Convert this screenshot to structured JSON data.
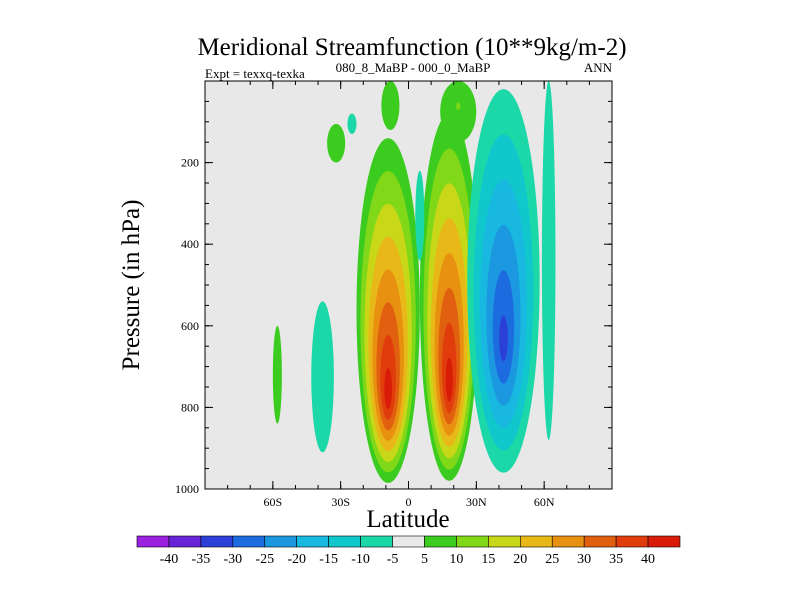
{
  "chart_data": {
    "type": "contour",
    "title": "Meridional Streamfunction (10**9kg/m-2)",
    "left_label": "Expt = texxq-texka",
    "center_label": "080_8_MaBP - 000_0_MaBP",
    "right_label": "ANN",
    "xlabel": "Latitude",
    "ylabel": "Pressure (in hPa)",
    "xlim": [
      -90,
      90
    ],
    "ylim": [
      1000,
      0
    ],
    "x_ticks": [
      {
        "value": -60,
        "label": "60S"
      },
      {
        "value": -30,
        "label": "30S"
      },
      {
        "value": 0,
        "label": "0"
      },
      {
        "value": 30,
        "label": "30N"
      },
      {
        "value": 60,
        "label": "60N"
      }
    ],
    "y_ticks": [
      {
        "value": 200,
        "label": "200"
      },
      {
        "value": 400,
        "label": "400"
      },
      {
        "value": 600,
        "label": "600"
      },
      {
        "value": 800,
        "label": "800"
      },
      {
        "value": 1000,
        "label": "1000"
      }
    ],
    "contour_levels": [
      "-40",
      "-35",
      "-30",
      "-25",
      "-20",
      "-15",
      "-10",
      "-5",
      "5",
      "10",
      "15",
      "20",
      "25",
      "30",
      "35",
      "40"
    ],
    "colorbar_colors": [
      "#9b20e0",
      "#6a24d8",
      "#2c40d8",
      "#1c6ce0",
      "#1c98e0",
      "#18b8e0",
      "#10c8cc",
      "#1cd8a8",
      "#e8e8e8",
      "#3ccc20",
      "#80d818",
      "#c8d818",
      "#e8b818",
      "#e89010",
      "#e06010",
      "#e03c0c",
      "#d81c08"
    ],
    "missing_color": "#e8e8e8",
    "features": [
      {
        "name": "cell-a",
        "lat_center": -9,
        "p_top": 140,
        "p_bottom": 985,
        "lat_halfwidth": 14,
        "peak": 40,
        "p_peak": 780
      },
      {
        "name": "cell-b",
        "lat_center": 18,
        "p_top": 80,
        "p_bottom": 980,
        "lat_halfwidth": 13,
        "peak": 40,
        "p_peak": 760
      },
      {
        "name": "cell-c",
        "lat_center": 42,
        "p_top": 20,
        "p_bottom": 960,
        "lat_halfwidth": 16,
        "peak": -30,
        "p_peak": 650
      },
      {
        "name": "cell-d",
        "lat_center": -8,
        "p_top": 0,
        "p_bottom": 120,
        "lat_halfwidth": 4,
        "peak": 6,
        "p_peak": 40
      },
      {
        "name": "cell-e",
        "lat_center": 22,
        "p_top": 0,
        "p_bottom": 150,
        "lat_halfwidth": 8,
        "peak": 10,
        "p_peak": 60
      },
      {
        "name": "cell-f",
        "lat_center": -32,
        "p_top": 105,
        "p_bottom": 200,
        "lat_halfwidth": 4,
        "peak": 7,
        "p_peak": 160
      },
      {
        "name": "cell-g",
        "lat_center": -38,
        "p_top": 540,
        "p_bottom": 910,
        "lat_halfwidth": 5,
        "peak": -7,
        "p_peak": 800
      },
      {
        "name": "cell-h",
        "lat_center": -58,
        "p_top": 600,
        "p_bottom": 840,
        "lat_halfwidth": 2,
        "peak": 6,
        "p_peak": 750
      },
      {
        "name": "cell-i",
        "lat_center": -25,
        "p_top": 80,
        "p_bottom": 130,
        "lat_halfwidth": 2,
        "peak": -6,
        "p_peak": 100
      },
      {
        "name": "cell-j",
        "lat_center": 5,
        "p_top": 220,
        "p_bottom": 440,
        "lat_halfwidth": 2,
        "peak": -6,
        "p_peak": 330
      },
      {
        "name": "cell-k",
        "lat_center": 62,
        "p_top": 0,
        "p_bottom": 880,
        "lat_halfwidth": 3,
        "peak": -6,
        "p_peak": 400
      }
    ]
  }
}
